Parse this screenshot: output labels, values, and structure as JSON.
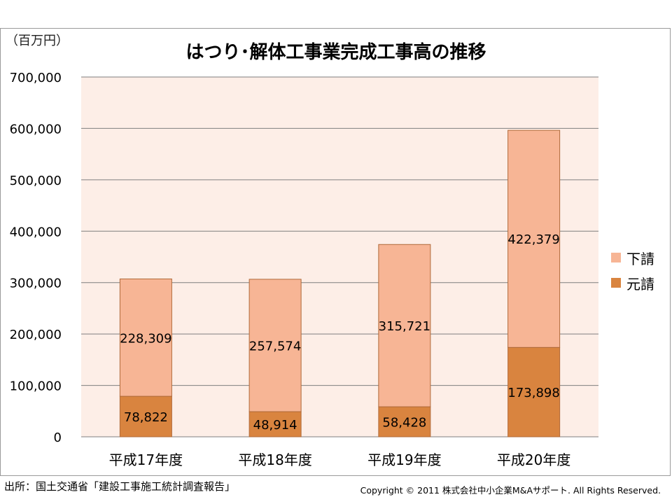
{
  "unit_label": "（百万円）",
  "footer": {
    "source": "出所：国土交通省「建設工事施工統計調査報告」",
    "copyright": "Copyright © 2011 株式会社中小企業M&Aサポート. All Rights Reserved."
  },
  "colors": {
    "plot_background": "#fdeee7",
    "gridline": "#7f7f7f",
    "bar_border": "#b06a3a",
    "subcontract": "#f7b595",
    "prime": "#d9843f"
  },
  "chart_data": {
    "type": "bar",
    "stacked": true,
    "title": "はつり･解体工事業完成工事高の推移",
    "xlabel": "",
    "ylabel": "",
    "categories": [
      "平成17年度",
      "平成18年度",
      "平成19年度",
      "平成20年度"
    ],
    "series": [
      {
        "name": "元請",
        "values": [
          78822,
          48914,
          58428,
          173898
        ],
        "labels": [
          "78,822",
          "48,914",
          "58,428",
          "173,898"
        ]
      },
      {
        "name": "下請",
        "values": [
          228309,
          257574,
          315721,
          422379
        ],
        "labels": [
          "228,309",
          "257,574",
          "315,721",
          "422,379"
        ]
      }
    ],
    "ylim": [
      0,
      700000
    ],
    "yticks": [
      0,
      100000,
      200000,
      300000,
      400000,
      500000,
      600000,
      700000
    ],
    "ytick_labels": [
      "0",
      "100,000",
      "200,000",
      "300,000",
      "400,000",
      "500,000",
      "600,000",
      "700,000"
    ],
    "grid": true,
    "legend_position": "right",
    "legend": [
      {
        "name": "下請"
      },
      {
        "name": "元請"
      }
    ]
  }
}
